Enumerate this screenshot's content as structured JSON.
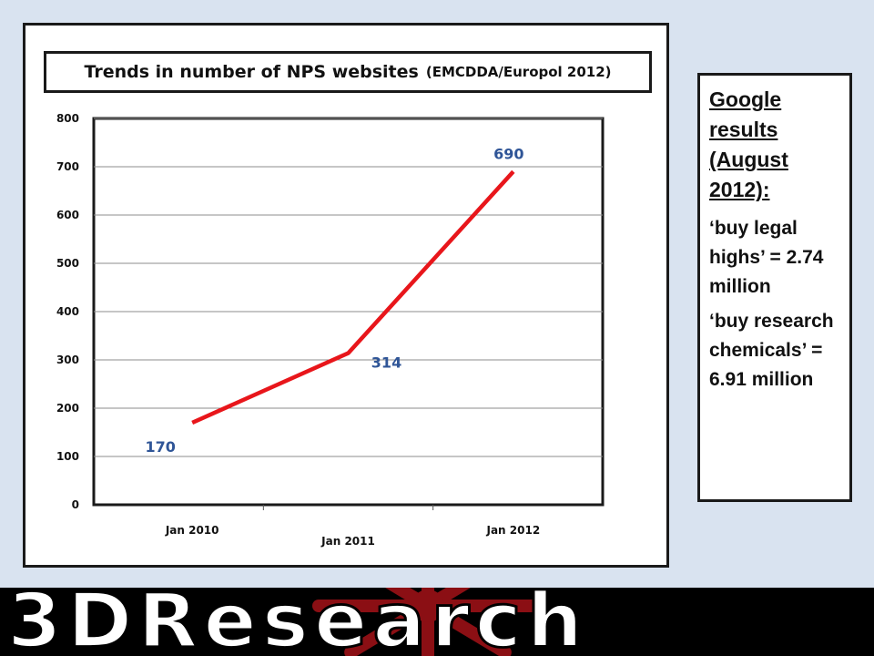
{
  "chart_data": {
    "type": "line",
    "title": "Trends in number of NPS websites",
    "subtitle": "(EMCDDA/Europol 2012)",
    "categories": [
      "Jan 2010",
      "Jan 2011",
      "Jan 2012"
    ],
    "series": [
      {
        "values": [
          170,
          314,
          690
        ],
        "labels": [
          "170",
          "314",
          "690"
        ],
        "color": "#e8161b"
      }
    ],
    "yticks": [
      "0",
      "100",
      "200",
      "300",
      "400",
      "500",
      "600",
      "700",
      "800"
    ],
    "ylim": [
      0,
      800
    ],
    "grid": true,
    "label_color": "#2f5597"
  },
  "sidebar": {
    "heading": "Google results (August 2012)",
    "heading_suffix": ":",
    "items": [
      "‘buy legal highs’ = 2.74 million",
      "‘buy research chemicals’ = 6.91 million"
    ]
  },
  "banner": {
    "text": "3DResearch",
    "background": "#000000",
    "mark_color": "#8b0f14"
  }
}
